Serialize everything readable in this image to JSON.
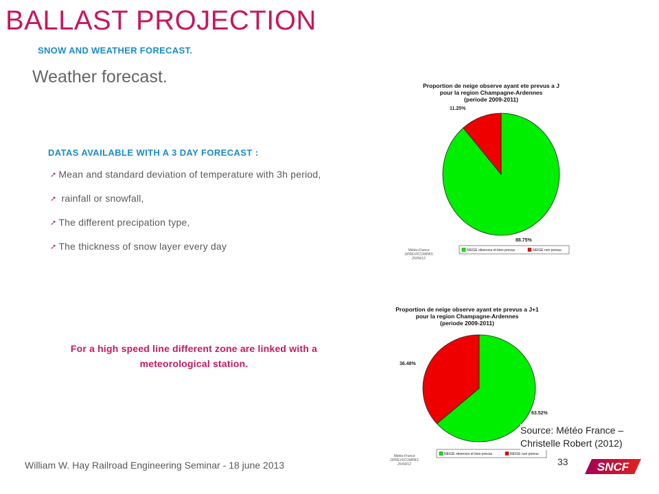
{
  "header": {
    "title": "BALLAST PROJECTION",
    "subtitle": "SNOW AND WEATHER FORECAST.",
    "section": "Weather forecast."
  },
  "content": {
    "heading": "DATAS AVAILABLE  WITH A 3 DAY FORECAST  :",
    "bullets": [
      "Mean and standard deviation of temperature with 3h period,",
      " rainfall or snowfall,",
      "The different precipation type,",
      "The thickness of snow layer every day"
    ],
    "note": "For a high speed line different zone are linked with a meteorological station."
  },
  "footer": {
    "text": "William W. Hay Railroad Engineering Seminar - 18 june 2013",
    "page": "33",
    "source_line1": "Source: Météo France –",
    "source_line2": "Christelle Robert  (2012)",
    "logo_text": "SNCF"
  },
  "colors": {
    "brand": "#c8175e",
    "accent": "#1a8bc8",
    "green": "#00ee00",
    "red": "#ee0000"
  },
  "chart_data": [
    {
      "type": "pie",
      "title_lines": [
        "Proportion de neige observe ayant ete prevus a J",
        "pour la region Champagne-Ardennes",
        "(periode 2009-2011)"
      ],
      "labels": [
        "NEIGE observes et bien prevus",
        "NEIGE non prevus"
      ],
      "values": [
        88.75,
        11.25
      ],
      "value_labels": [
        "88.75%",
        "11.25%"
      ],
      "colors": [
        "#00ee00",
        "#ee0000"
      ],
      "credit_lines": [
        "Météo-France",
        "DPREVI/COMPAS",
        "25/04/12"
      ],
      "legend_position": "bottom"
    },
    {
      "type": "pie",
      "title_lines": [
        "Proportion de neige observe ayant ete prevus a J+1",
        "pour la region Champagne-Ardennes",
        "(periode 2009-2011)"
      ],
      "labels": [
        "NEIGE observes et bien prevus",
        "NEIGE non prevus"
      ],
      "values": [
        63.52,
        36.48
      ],
      "value_labels": [
        "63.52%",
        "36.48%"
      ],
      "colors": [
        "#00ee00",
        "#ee0000"
      ],
      "credit_lines": [
        "Météo-France",
        "DPREVI/COMPAS",
        "25/04/12"
      ],
      "legend_position": "bottom"
    }
  ]
}
